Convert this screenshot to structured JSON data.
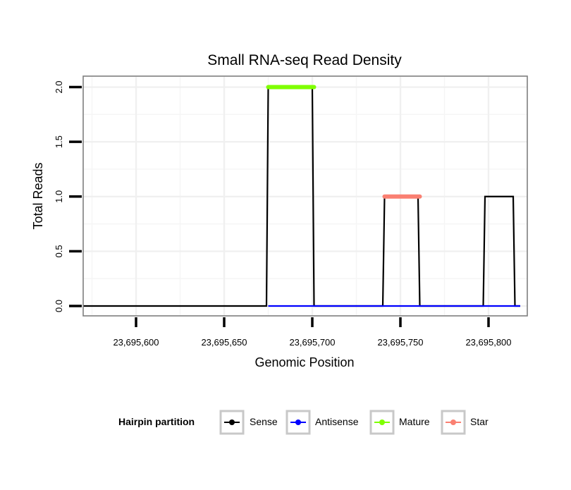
{
  "chart_data": {
    "type": "line",
    "title": "Small RNA-seq Read Density",
    "xlabel": "Genomic Position",
    "ylabel": "Total Reads",
    "xlim": [
      23695570,
      23695822
    ],
    "ylim": [
      -0.09,
      2.1
    ],
    "x_ticks": [
      {
        "value": 23695600,
        "label": "23,695,600"
      },
      {
        "value": 23695650,
        "label": "23,695,650"
      },
      {
        "value": 23695700,
        "label": "23,695,700"
      },
      {
        "value": 23695750,
        "label": "23,695,750"
      },
      {
        "value": 23695800,
        "label": "23,695,800"
      }
    ],
    "y_ticks": [
      {
        "value": 0,
        "label": "0.0"
      },
      {
        "value": 0.5,
        "label": "0.5"
      },
      {
        "value": 1,
        "label": "1.0"
      },
      {
        "value": 1.5,
        "label": "1.5"
      },
      {
        "value": 2,
        "label": "2.0"
      }
    ],
    "grid": true,
    "legend_title": "Hairpin partition",
    "legend_position": "bottom",
    "series": [
      {
        "name": "Sense",
        "color": "#000000",
        "x": [
          23695570,
          23695674,
          23695675,
          23695700,
          23695701,
          23695740,
          23695741,
          23695760,
          23695761,
          23695797,
          23695798,
          23695814,
          23695815,
          23695818
        ],
        "y": [
          0,
          0,
          2,
          2,
          0,
          0,
          1,
          1,
          0,
          0,
          1,
          1,
          0,
          0
        ]
      },
      {
        "name": "Antisense",
        "color": "#0000ff",
        "x": [
          23695675,
          23695818
        ],
        "y": [
          0,
          0
        ]
      },
      {
        "name": "Mature",
        "color": "#7fff00",
        "x": [
          23695675,
          23695701
        ],
        "y": [
          2,
          2
        ]
      },
      {
        "name": "Star",
        "color": "#fa8072",
        "x": [
          23695741,
          23695761
        ],
        "y": [
          1,
          1
        ]
      }
    ]
  }
}
